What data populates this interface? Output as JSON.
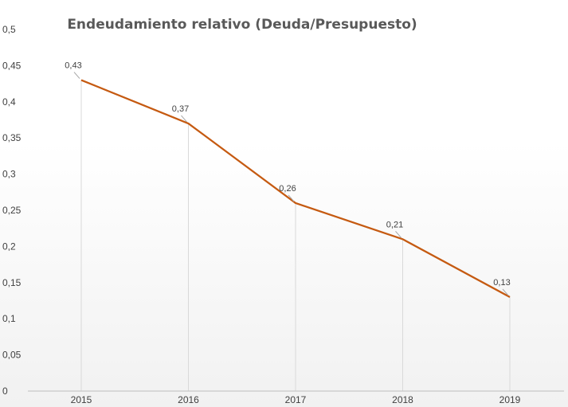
{
  "chart_data": {
    "type": "line",
    "title": "Endeudamiento relativo (Deuda/Presupuesto)",
    "xlabel": "",
    "ylabel": "",
    "categories": [
      "2015",
      "2016",
      "2017",
      "2018",
      "2019"
    ],
    "series": [
      {
        "values": [
          0.43,
          0.37,
          0.26,
          0.21,
          0.13
        ]
      }
    ],
    "data_labels": [
      "0,43",
      "0,37",
      "0,26",
      "0,21",
      "0,13"
    ],
    "ylim": [
      0,
      0.5
    ],
    "yticks": [
      "0",
      "0,05",
      "0,1",
      "0,15",
      "0,2",
      "0,25",
      "0,3",
      "0,35",
      "0,4",
      "0,45",
      "0,5"
    ],
    "grid": false,
    "drop_lines": true,
    "legend": "none",
    "colors": {
      "line": "#C55A11",
      "drop_line": "#d9d9d9",
      "axis": "#bfbfbf",
      "text": "#404040",
      "title": "#595959"
    }
  }
}
